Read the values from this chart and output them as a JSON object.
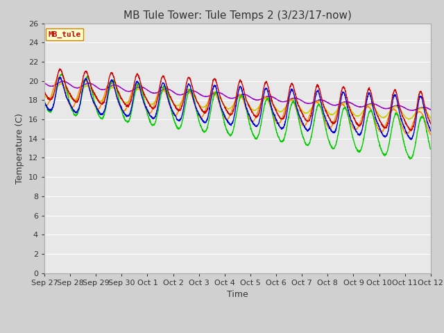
{
  "title": "MB Tule Tower: Tule Temps 2 (3/23/17-now)",
  "xlabel": "Time",
  "ylabel": "Temperature (C)",
  "ylim": [
    0,
    26
  ],
  "yticks": [
    0,
    2,
    4,
    6,
    8,
    10,
    12,
    14,
    16,
    18,
    20,
    22,
    24,
    26
  ],
  "fig_bg": "#d0d0d0",
  "plot_bg": "#e8e8e8",
  "grid_color": "#ffffff",
  "title_fontsize": 11,
  "axis_label_fontsize": 9,
  "tick_fontsize": 8,
  "legend_fontsize": 8,
  "series_colors": {
    "Tul2_Tw+2": "#cc0000",
    "Tul2_Ts-2": "#0000dd",
    "Tul2_Ts-4": "#00cc00",
    "Tul2_Ts-8": "#ff8800",
    "Tul2_Ts-16": "#cccc00",
    "Tul2_Ts-32": "#9900cc"
  },
  "lw": 1.0,
  "xtick_labels": [
    "Sep 27",
    "Sep 28",
    "Sep 29",
    "Sep 30",
    "Oct 1",
    "Oct 2",
    "Oct 3",
    "Oct 4",
    "Oct 5",
    "Oct 6",
    "Oct 7",
    "Oct 8",
    "Oct 9",
    "Oct 10",
    "Oct 11",
    "Oct 12"
  ],
  "watermark": "MB_tule",
  "watermark_color": "#cc0000",
  "watermark_bg": "#ffffcc",
  "watermark_border": "#cc8800"
}
